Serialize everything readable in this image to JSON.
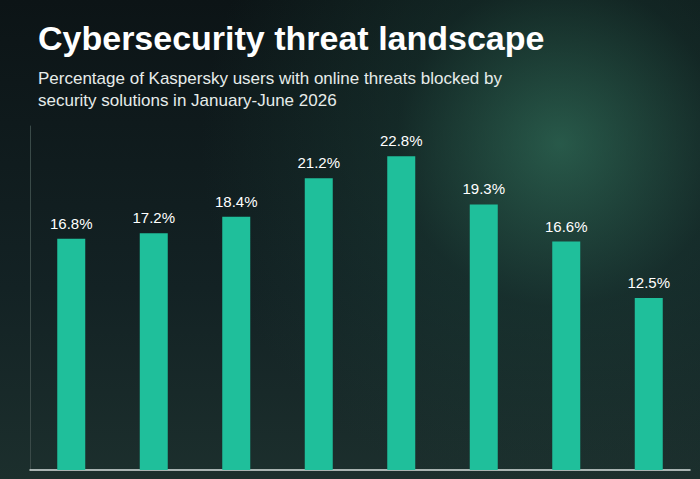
{
  "chart_data": {
    "type": "bar",
    "title": "Cybersecurity threat landscape",
    "subtitle": "Percentage of Kaspersky users with online threats blocked by security solutions in January-June 2026",
    "categories": [
      null,
      null,
      null,
      null,
      null,
      null,
      null,
      null
    ],
    "values": [
      16.8,
      17.2,
      18.4,
      21.2,
      22.8,
      19.3,
      16.6,
      12.5
    ],
    "value_labels": [
      "16.8%",
      "17.2%",
      "18.4%",
      "21.2%",
      "22.8%",
      "19.3%",
      "16.6%",
      "12.5%"
    ],
    "color": "#1fbf9b",
    "ylim": [
      0,
      25
    ],
    "grid": false,
    "data_labels": true,
    "tick_labels": false
  }
}
